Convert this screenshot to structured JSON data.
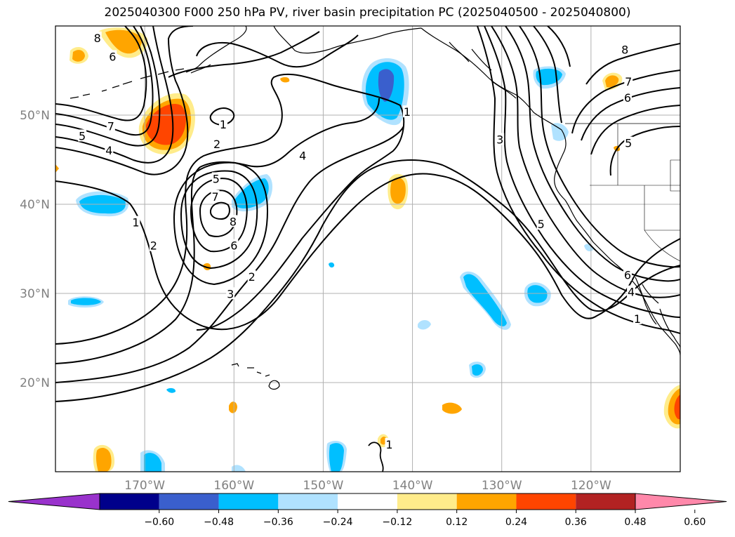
{
  "title": "2025040300 F000 250 hPa PV, river basin precipitation PC (2025040500 - 2025040800)",
  "map": {
    "lon_range": [
      -180,
      -110
    ],
    "lat_range": [
      10,
      60
    ],
    "lat_ticks": [
      {
        "value": 20,
        "label": "20°N"
      },
      {
        "value": 30,
        "label": "30°N"
      },
      {
        "value": 40,
        "label": "40°N"
      },
      {
        "value": 50,
        "label": "50°N"
      }
    ],
    "lon_ticks": [
      {
        "value": -170,
        "label": "170°W"
      },
      {
        "value": -160,
        "label": "160°W"
      },
      {
        "value": -150,
        "label": "150°W"
      },
      {
        "value": -140,
        "label": "140°W"
      },
      {
        "value": -130,
        "label": "130°W"
      },
      {
        "value": -120,
        "label": "120°W"
      }
    ],
    "gridlines": true
  },
  "colorbar": {
    "extend": "both",
    "colors": [
      "#9932cc",
      "#00008b",
      "#3a5fcd",
      "#00bfff",
      "#b0e2ff",
      "#ffffff",
      "#ffec8b",
      "#ffa500",
      "#ff4500",
      "#b22222",
      "#ff88aa"
    ],
    "ticks": [
      "−0.60",
      "−0.48",
      "−0.36",
      "−0.24",
      "−0.12",
      "0.12",
      "0.24",
      "0.36",
      "0.48",
      "0.60"
    ]
  },
  "pv_contour_labels": [
    {
      "text": "8",
      "lon": -175.3,
      "lat": 58.6
    },
    {
      "text": "6",
      "lon": -173.6,
      "lat": 56.5
    },
    {
      "text": "7",
      "lon": -173.8,
      "lat": 48.7
    },
    {
      "text": "5",
      "lon": -177.0,
      "lat": 47.6
    },
    {
      "text": "4",
      "lon": -174.0,
      "lat": 46.0
    },
    {
      "text": "1",
      "lon": -161.2,
      "lat": 48.9
    },
    {
      "text": "2",
      "lon": -161.9,
      "lat": 46.7
    },
    {
      "text": "5",
      "lon": -162.0,
      "lat": 42.8
    },
    {
      "text": "7",
      "lon": -162.1,
      "lat": 40.8
    },
    {
      "text": "8",
      "lon": -160.1,
      "lat": 38.0
    },
    {
      "text": "6",
      "lon": -160.0,
      "lat": 35.3
    },
    {
      "text": "1",
      "lon": -171.0,
      "lat": 37.9
    },
    {
      "text": "2",
      "lon": -169.0,
      "lat": 35.3
    },
    {
      "text": "2",
      "lon": -158.0,
      "lat": 31.8
    },
    {
      "text": "3",
      "lon": -160.4,
      "lat": 29.9
    },
    {
      "text": "4",
      "lon": -152.3,
      "lat": 45.4
    },
    {
      "text": "1",
      "lon": -140.6,
      "lat": 50.3
    },
    {
      "text": "3",
      "lon": -130.2,
      "lat": 47.2
    },
    {
      "text": "5",
      "lon": -125.6,
      "lat": 37.7
    },
    {
      "text": "8",
      "lon": -116.2,
      "lat": 57.3
    },
    {
      "text": "7",
      "lon": -115.8,
      "lat": 53.7
    },
    {
      "text": "6",
      "lon": -115.9,
      "lat": 51.9
    },
    {
      "text": "5",
      "lon": -115.8,
      "lat": 46.8
    },
    {
      "text": "6",
      "lon": -115.9,
      "lat": 32.0
    },
    {
      "text": "4",
      "lon": -115.5,
      "lat": 30.1
    },
    {
      "text": "1",
      "lon": -114.8,
      "lat": 27.1
    },
    {
      "text": "1",
      "lon": -142.6,
      "lat": 13.0
    }
  ]
}
